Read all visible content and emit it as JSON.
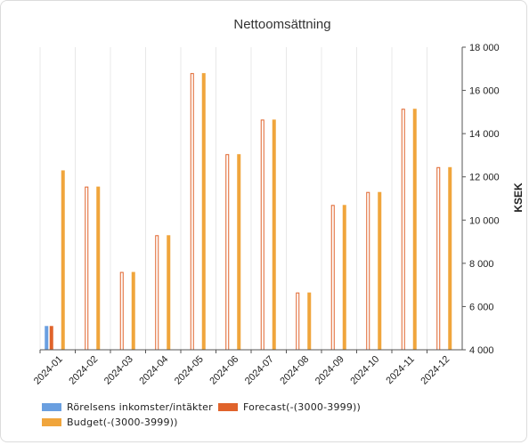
{
  "chart_data": {
    "type": "bar",
    "title": "Nettoomsättning",
    "xlabel": "",
    "ylabel": "KSEK",
    "ylim": [
      4000,
      18000
    ],
    "yticks": [
      4000,
      6000,
      8000,
      10000,
      12000,
      14000,
      16000,
      18000
    ],
    "ytick_labels": [
      "4 000",
      "6 000",
      "8 000",
      "10 000",
      "12 000",
      "14 000",
      "16 000",
      "18 000"
    ],
    "y_axis_position": "right",
    "grid": "vertical",
    "legend_position": "bottom",
    "categories": [
      "2024-01",
      "2024-02",
      "2024-03",
      "2024-04",
      "2024-05",
      "2024-06",
      "2024-07",
      "2024-08",
      "2024-09",
      "2024-10",
      "2024-11",
      "2024-12"
    ],
    "series": [
      {
        "name": "Rörelsens inkomster/intäkter",
        "color": "#6a9fe0",
        "values": [
          5100,
          null,
          null,
          null,
          null,
          null,
          null,
          null,
          null,
          null,
          null,
          null
        ]
      },
      {
        "name": "Forecast(-(3000-3999))",
        "color": "#e0632b",
        "style": "hollow-after-first",
        "values": [
          5100,
          11550,
          7600,
          9300,
          16800,
          13050,
          14650,
          6650,
          10700,
          11300,
          15150,
          12450
        ]
      },
      {
        "name": "Budget(-(3000-3999))",
        "color": "#f0a53c",
        "values": [
          12300,
          11550,
          7600,
          9300,
          16800,
          13050,
          14650,
          6650,
          10700,
          11300,
          15150,
          12450
        ]
      }
    ]
  }
}
